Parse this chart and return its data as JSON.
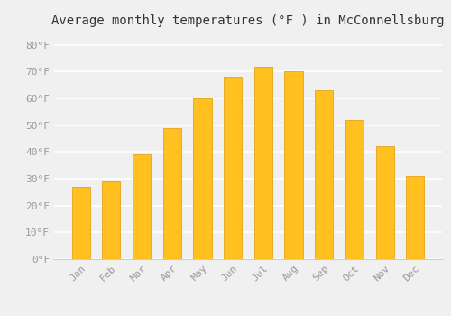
{
  "title": "Average monthly temperatures (°F ) in McConnellsburg",
  "months": [
    "Jan",
    "Feb",
    "Mar",
    "Apr",
    "May",
    "Jun",
    "Jul",
    "Aug",
    "Sep",
    "Oct",
    "Nov",
    "Dec"
  ],
  "values": [
    27,
    29,
    39,
    49,
    60,
    68,
    72,
    70,
    63,
    52,
    42,
    31
  ],
  "bar_color_top": "#FFC020",
  "bar_color_bottom": "#F5A800",
  "bar_edge_color": "#E09800",
  "background_color": "#F0F0F0",
  "grid_color": "#FFFFFF",
  "title_fontsize": 10,
  "tick_fontsize": 8,
  "ylim": [
    0,
    85
  ],
  "yticks": [
    0,
    10,
    20,
    30,
    40,
    50,
    60,
    70,
    80
  ],
  "ytick_labels": [
    "0°F",
    "10°F",
    "20°F",
    "30°F",
    "40°F",
    "50°F",
    "60°F",
    "70°F",
    "80°F"
  ],
  "bar_width": 0.6
}
